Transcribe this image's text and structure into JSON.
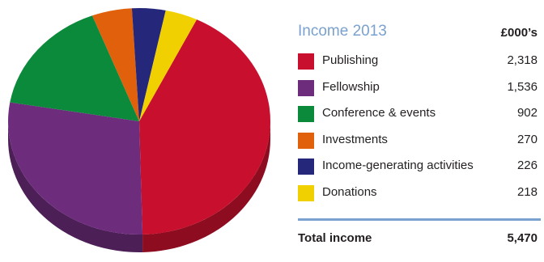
{
  "chart_data": {
    "type": "pie",
    "title": "Income 2013",
    "unit": "£000’s",
    "categories": [
      "Publishing",
      "Fellowship",
      "Conference & events",
      "Investments",
      "Income-generating activities",
      "Donations"
    ],
    "values": [
      2318,
      1536,
      902,
      270,
      226,
      218
    ],
    "value_labels": [
      "2,318",
      "1,536",
      "902",
      "270",
      "226",
      "218"
    ],
    "colors": [
      "#c8102e",
      "#6e2c7d",
      "#0a8a3a",
      "#e0600c",
      "#25287a",
      "#f0d000"
    ],
    "side_colors": [
      "#8e0c20",
      "#4c1f57",
      "#076328",
      "#a3460a",
      "#1a1c57",
      "#b09a00"
    ],
    "total_label": "Total income",
    "total_value": "5,470",
    "legend_position": "right"
  }
}
